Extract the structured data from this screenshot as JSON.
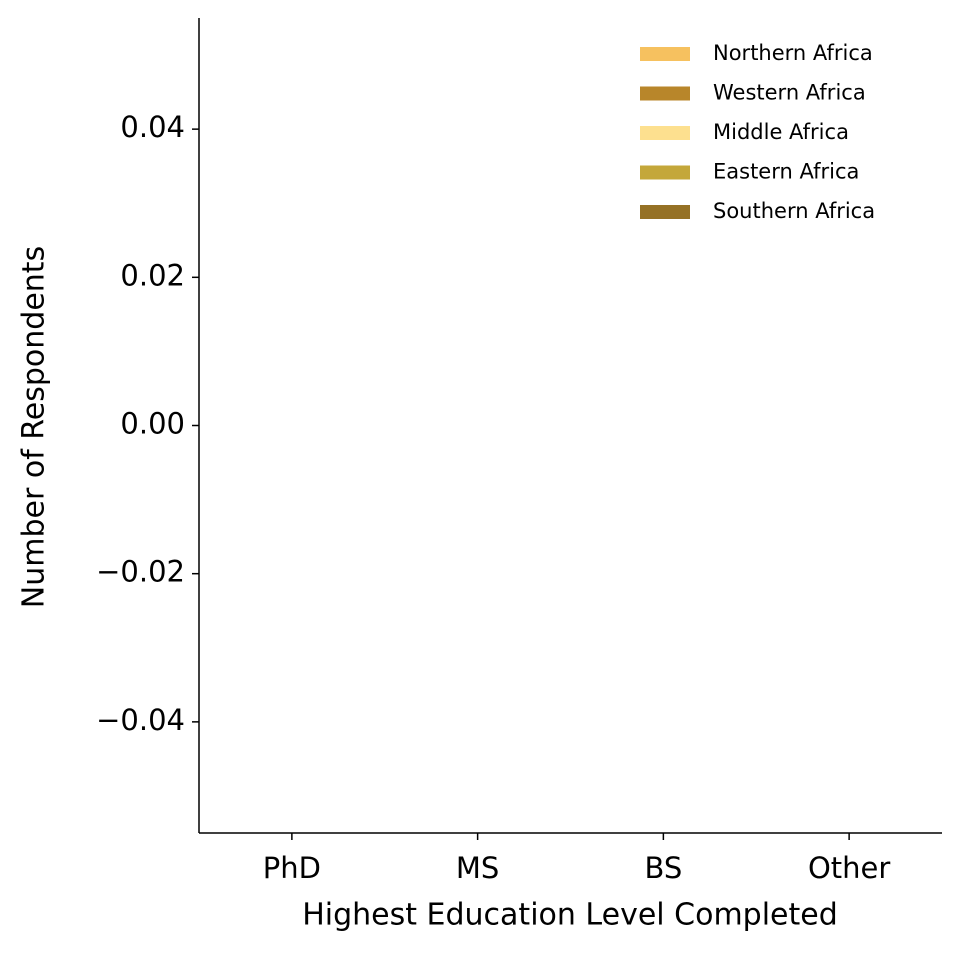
{
  "chart_data": {
    "type": "stacked_bar",
    "xlabel": "Highest Education Level Completed",
    "ylabel": "Number of Respondents",
    "categories": [
      "PhD",
      "MS",
      "BS",
      "Other"
    ],
    "series": [
      {
        "name": "Northern Africa",
        "color": "#f6c15f",
        "values": [
          0,
          0,
          0,
          0
        ]
      },
      {
        "name": "Western Africa",
        "color": "#b8862a",
        "values": [
          0,
          0,
          0,
          0
        ]
      },
      {
        "name": "Middle Africa",
        "color": "#fde08f",
        "values": [
          0,
          0,
          0,
          0
        ]
      },
      {
        "name": "Eastern Africa",
        "color": "#c4a73a",
        "values": [
          0,
          0,
          0,
          0
        ]
      },
      {
        "name": "Southern Africa",
        "color": "#957125",
        "values": [
          0,
          0,
          0,
          0
        ]
      }
    ],
    "ylim": [
      -0.055,
      0.055
    ],
    "yticks": [
      {
        "value": -0.04,
        "label": "−0.04"
      },
      {
        "value": -0.02,
        "label": "−0.02"
      },
      {
        "value": 0,
        "label": "0.00"
      },
      0.02,
      0.04
    ],
    "grid": false,
    "legend": "upper right"
  }
}
